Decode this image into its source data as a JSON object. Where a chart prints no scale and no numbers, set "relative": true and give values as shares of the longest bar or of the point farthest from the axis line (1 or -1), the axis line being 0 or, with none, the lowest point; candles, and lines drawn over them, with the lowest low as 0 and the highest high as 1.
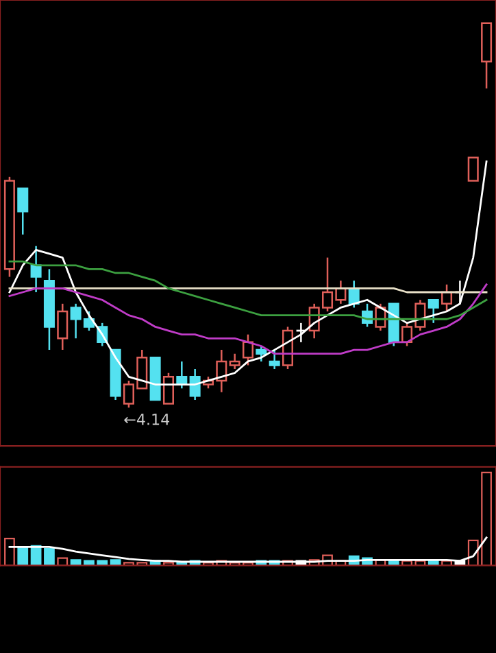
{
  "chart_data": [
    {
      "type": "candlestick",
      "relative": true,
      "categories": [
        null,
        null,
        null,
        null,
        null,
        null,
        null,
        null,
        null,
        null,
        null,
        null,
        null,
        null,
        null,
        null,
        null,
        null,
        null,
        null,
        null,
        null,
        null,
        null,
        null,
        null,
        null,
        null,
        null,
        null,
        null,
        null,
        null,
        null,
        null,
        null,
        null
      ],
      "ohlc": [
        [
          0.36,
          0.6,
          0.34,
          0.59
        ],
        [
          0.57,
          0.57,
          0.45,
          0.51
        ],
        [
          0.37,
          0.42,
          0.3,
          0.34
        ],
        [
          0.33,
          0.36,
          0.15,
          0.21
        ],
        [
          0.18,
          0.27,
          0.15,
          0.25
        ],
        [
          0.26,
          0.27,
          0.18,
          0.23
        ],
        [
          0.23,
          0.25,
          0.2,
          0.21
        ],
        [
          0.21,
          0.22,
          0.16,
          0.17
        ],
        [
          0.15,
          0.15,
          0.02,
          0.03
        ],
        [
          0.01,
          0.07,
          0,
          0.06
        ],
        [
          0.05,
          0.15,
          0.05,
          0.13
        ],
        [
          0.13,
          0.13,
          0.02,
          0.02
        ],
        [
          0.01,
          0.09,
          0.01,
          0.08
        ],
        [
          0.08,
          0.12,
          0.05,
          0.06
        ],
        [
          0.08,
          0.1,
          0.02,
          0.03
        ],
        [
          0.06,
          0.08,
          0.05,
          0.07
        ],
        [
          0.07,
          0.15,
          0.04,
          0.12
        ],
        [
          0.11,
          0.14,
          0.1,
          0.12
        ],
        [
          0.13,
          0.19,
          0.11,
          0.17
        ],
        [
          0.15,
          0.16,
          0.12,
          0.14
        ],
        [
          0.12,
          0.15,
          0.1,
          0.11
        ],
        [
          0.11,
          0.21,
          0.1,
          0.2
        ],
        [
          0.2,
          0.22,
          0.17,
          0.2
        ],
        [
          0.2,
          0.27,
          0.18,
          0.26
        ],
        [
          0.26,
          0.39,
          0.25,
          0.3
        ],
        [
          0.28,
          0.33,
          0.27,
          0.31
        ],
        [
          0.31,
          0.33,
          0.26,
          0.27
        ],
        [
          0.25,
          0.27,
          0.21,
          0.22
        ],
        [
          0.21,
          0.27,
          0.2,
          0.26
        ],
        [
          0.27,
          0.27,
          0.16,
          0.17
        ],
        [
          0.17,
          0.22,
          0.16,
          0.21
        ],
        [
          0.21,
          0.28,
          0.2,
          0.27
        ],
        [
          0.28,
          0.28,
          0.22,
          0.26
        ],
        [
          0.27,
          0.32,
          0.25,
          0.3
        ],
        [
          0.3,
          0.33,
          0.27,
          0.3
        ],
        [
          0.59,
          0.65,
          0.59,
          0.65
        ],
        [
          0.9,
          1,
          0.83,
          1
        ]
      ],
      "colors": [
        "#e0605a",
        "#54e1f0",
        "#54e1f0",
        "#54e1f0",
        "#e0605a",
        "#54e1f0",
        "#54e1f0",
        "#54e1f0",
        "#54e1f0",
        "#e0605a",
        "#e0605a",
        "#54e1f0",
        "#e0605a",
        "#54e1f0",
        "#54e1f0",
        "#e0605a",
        "#e0605a",
        "#e0605a",
        "#e0605a",
        "#54e1f0",
        "#54e1f0",
        "#e0605a",
        "#ffffff",
        "#e0605a",
        "#e0605a",
        "#e0605a",
        "#54e1f0",
        "#54e1f0",
        "#e0605a",
        "#54e1f0",
        "#e0605a",
        "#e0605a",
        "#54e1f0",
        "#e0605a",
        "#ffffff",
        "#e0605a",
        "#e0605a"
      ],
      "series": [
        {
          "type": "line",
          "color": "#ffffff",
          "values": [
            0.3,
            0.37,
            0.41,
            0.4,
            0.39,
            0.3,
            0.24,
            0.19,
            0.13,
            0.08,
            0.07,
            0.06,
            0.06,
            0.06,
            0.06,
            0.07,
            0.08,
            0.09,
            0.12,
            0.13,
            0.15,
            0.17,
            0.19,
            0.22,
            0.24,
            0.26,
            0.27,
            0.28,
            0.26,
            0.24,
            0.22,
            0.23,
            0.24,
            0.25,
            0.27,
            0.39,
            0.64
          ]
        },
        {
          "type": "line",
          "color": "#e8e0c8",
          "values": [
            0.31,
            0.31,
            0.31,
            0.31,
            0.31,
            0.31,
            0.31,
            0.31,
            0.31,
            0.31,
            0.31,
            0.31,
            0.31,
            0.31,
            0.31,
            0.31,
            0.31,
            0.31,
            0.31,
            0.31,
            0.31,
            0.31,
            0.31,
            0.31,
            0.31,
            0.31,
            0.31,
            0.31,
            0.31,
            0.31,
            0.3,
            0.3,
            0.3,
            0.3,
            0.3,
            0.3,
            0.3
          ]
        },
        {
          "type": "line",
          "color": "#c03cc8",
          "values": [
            0.29,
            0.3,
            0.31,
            0.31,
            0.31,
            0.3,
            0.29,
            0.28,
            0.26,
            0.24,
            0.23,
            0.21,
            0.2,
            0.19,
            0.19,
            0.18,
            0.18,
            0.18,
            0.17,
            0.16,
            0.14,
            0.14,
            0.14,
            0.14,
            0.14,
            0.14,
            0.15,
            0.15,
            0.16,
            0.17,
            0.17,
            0.19,
            0.2,
            0.21,
            0.23,
            0.27,
            0.32
          ]
        },
        {
          "type": "line",
          "color": "#3ca040",
          "values": [
            0.38,
            0.38,
            0.37,
            0.37,
            0.37,
            0.37,
            0.36,
            0.36,
            0.35,
            0.35,
            0.34,
            0.33,
            0.31,
            0.3,
            0.29,
            0.28,
            0.27,
            0.26,
            0.25,
            0.24,
            0.24,
            0.24,
            0.24,
            0.24,
            0.24,
            0.24,
            0.24,
            0.23,
            0.23,
            0.23,
            0.23,
            0.23,
            0.23,
            0.23,
            0.24,
            0.26,
            0.28
          ]
        }
      ],
      "annotations": [
        "←4.14"
      ]
    },
    {
      "type": "bar",
      "relative": true,
      "categories": [
        null,
        null,
        null,
        null,
        null,
        null,
        null,
        null,
        null,
        null,
        null,
        null,
        null,
        null,
        null,
        null,
        null,
        null,
        null,
        null,
        null,
        null,
        null,
        null,
        null,
        null,
        null,
        null,
        null,
        null,
        null,
        null,
        null,
        null,
        null,
        null,
        null
      ],
      "series": [
        {
          "type": "bar",
          "values": [
            0.29,
            0.19,
            0.21,
            0.18,
            0.08,
            0.06,
            0.05,
            0.05,
            0.06,
            0.03,
            0.03,
            0.05,
            0.03,
            0.04,
            0.05,
            0.03,
            0.05,
            0.03,
            0.03,
            0.05,
            0.05,
            0.05,
            0.05,
            0.06,
            0.11,
            0.05,
            0.1,
            0.08,
            0.06,
            0.06,
            0.05,
            0.05,
            0.06,
            0.05,
            0.05,
            0.27,
            1
          ],
          "colors": [
            "#e0605a",
            "#54e1f0",
            "#54e1f0",
            "#54e1f0",
            "#e0605a",
            "#54e1f0",
            "#54e1f0",
            "#54e1f0",
            "#54e1f0",
            "#e0605a",
            "#e0605a",
            "#54e1f0",
            "#e0605a",
            "#54e1f0",
            "#54e1f0",
            "#e0605a",
            "#e0605a",
            "#e0605a",
            "#e0605a",
            "#54e1f0",
            "#54e1f0",
            "#e0605a",
            "#ffffff",
            "#e0605a",
            "#e0605a",
            "#e0605a",
            "#54e1f0",
            "#54e1f0",
            "#e0605a",
            "#54e1f0",
            "#e0605a",
            "#e0605a",
            "#54e1f0",
            "#e0605a",
            "#ffffff",
            "#e0605a",
            "#e0605a"
          ]
        },
        {
          "type": "line",
          "color": "#ffffff",
          "values": [
            0.2,
            0.2,
            0.2,
            0.2,
            0.18,
            0.15,
            0.13,
            0.11,
            0.09,
            0.07,
            0.06,
            0.05,
            0.05,
            0.04,
            0.04,
            0.04,
            0.04,
            0.04,
            0.04,
            0.04,
            0.04,
            0.04,
            0.04,
            0.04,
            0.05,
            0.05,
            0.05,
            0.06,
            0.06,
            0.06,
            0.06,
            0.06,
            0.06,
            0.06,
            0.05,
            0.1,
            0.3
          ]
        }
      ]
    }
  ]
}
